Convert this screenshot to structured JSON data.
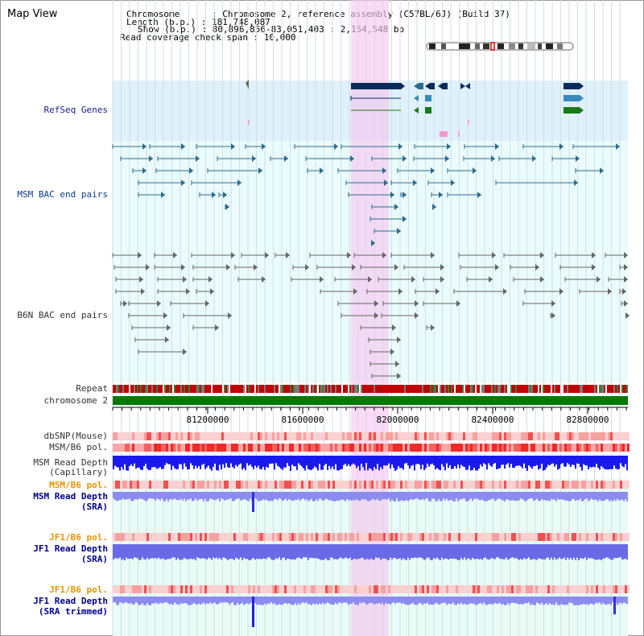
{
  "panel_title": "Map View",
  "header": {
    "line1": "Chromosome      : Chromosome 2, reference assembly (C57BL/6J) (Build 37)",
    "line2": "Length (b.p.) : 181,748,087",
    "line3": "Show (b.p.) : 80,896,856-83,051,403 : 2,154,548 bp",
    "line4": "Read coverage check span : 10,000"
  },
  "tracks": {
    "refseq": "RefSeq Genes",
    "msm_bac": "MSM BAC end pairs",
    "b6n_bac": "B6N BAC end pairs",
    "repeat": "Repeat",
    "chromosome": "chromosome 2",
    "dbsnp": "dbSNP(Mouse)",
    "msm_b6_pol": "MSM/B6 pol.",
    "msm_depth_cap_1": "MSM Read Depth",
    "msm_depth_cap_2": "(Capillary)",
    "msm_b6_pol_2": "MSM/B6 pol.",
    "msm_depth_sra_1": "MSM Read Depth",
    "msm_depth_sra_2": "(SRA)",
    "jf1_b6_pol": "JF1/B6 pol.",
    "jf1_depth_sra_1": "JF1 Read Depth",
    "jf1_depth_sra_2": "(SRA)",
    "jf1_b6_pol_2": "JF1/B6 pol.",
    "jf1_depth_trim_1": "JF1 Read Depth",
    "jf1_depth_trim_2": "(SRA trimmed)"
  },
  "axis": {
    "ticks": [
      "81200000",
      "81600000",
      "82000000",
      "82400000",
      "82800000"
    ]
  },
  "colors": {
    "highlight": "#f9d6f3",
    "refseq_bg": "#dff1fb",
    "bac_bg": "#e9fbfb",
    "chromosome": "#007a00",
    "msm_glyph": "#2a6d8f",
    "b6n_glyph": "#666666",
    "gene_dark": "#0b2a5c",
    "gene_mid": "#3a8bbd",
    "gene_green": "#1a7a1a"
  }
}
